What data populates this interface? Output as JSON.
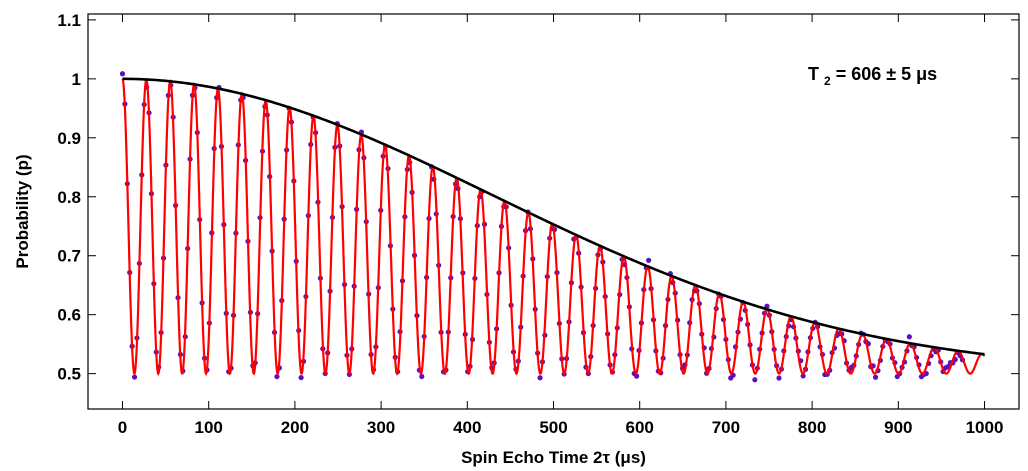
{
  "chart_data": {
    "type": "scatter",
    "title": "",
    "xlabel": "Spin Echo Time 2τ (μs)",
    "ylabel": "Probability (p)",
    "xlim": [
      -40,
      1040
    ],
    "ylim": [
      0.44,
      1.11
    ],
    "xticks": [
      0,
      100,
      200,
      300,
      400,
      500,
      600,
      700,
      800,
      900,
      1000
    ],
    "xtick_labels": [
      "0",
      "100",
      "200",
      "300",
      "400",
      "500",
      "600",
      "700",
      "800",
      "900",
      "1000"
    ],
    "yticks": [
      0.5,
      0.6,
      0.7,
      0.8,
      0.9,
      1.0,
      1.1
    ],
    "ytick_labels": [
      "0.5",
      "0.6",
      "0.7",
      "0.8",
      "0.9",
      "1",
      "1.1"
    ],
    "grid": false,
    "legend": "none",
    "annotation": {
      "text_base": "T",
      "text_sub": "2",
      "text_rest": " = 606 ± 5 μs",
      "position": "top-right"
    },
    "model": {
      "T2_us": 606,
      "T2_err_us": 5,
      "oscillation_period_us": 27.7,
      "baseline": 0.5,
      "amplitude_at_zero": 0.5,
      "envelope_at_1000us": 0.552
    },
    "series": [
      {
        "kind": "scatter",
        "color": "#5b0fc2",
        "x_start": 0,
        "x_end": 975,
        "x_step": 2.8
      },
      {
        "kind": "line",
        "color": "#ff0000",
        "x_start": 0,
        "x_end": 1000
      },
      {
        "kind": "line",
        "color": "#000000",
        "x_start": 0,
        "x_end": 1000
      }
    ]
  }
}
